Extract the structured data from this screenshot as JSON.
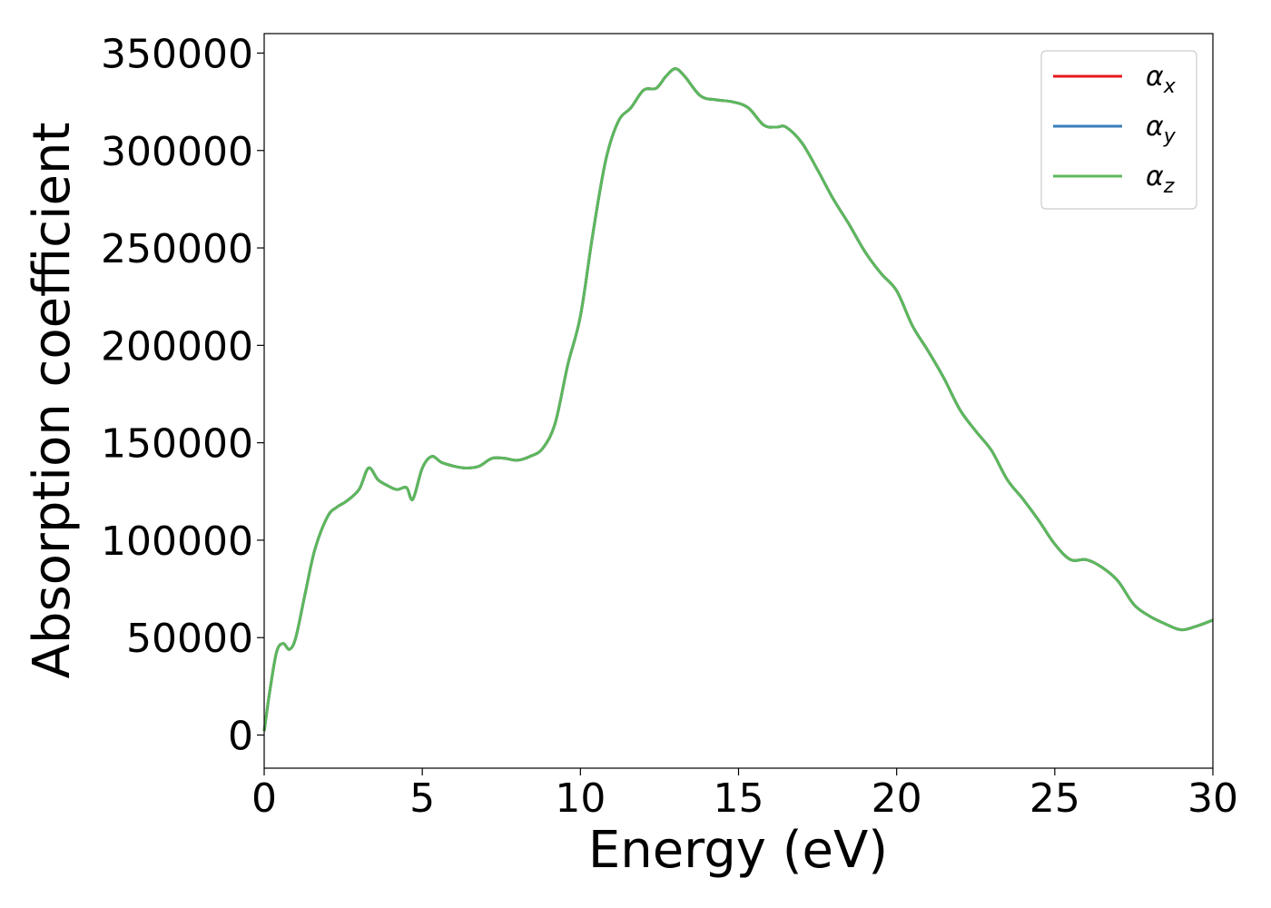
{
  "chart_data": {
    "type": "line",
    "xlabel": "Energy (eV)",
    "ylabel": "Absorption coefficient",
    "xlim": [
      0,
      30
    ],
    "ylim": [
      -17000,
      360000
    ],
    "xticks": [
      "0",
      "5",
      "10",
      "15",
      "20",
      "25",
      "30"
    ],
    "yticks": [
      "0",
      "50000",
      "100000",
      "150000",
      "200000",
      "250000",
      "300000",
      "350000"
    ],
    "grid": false,
    "legend_position": "top-right",
    "series": [
      {
        "name": "α_x",
        "symbol": "α",
        "subscript": "x",
        "color": "#e41a1c",
        "x": [
          0,
          0.2,
          0.4,
          0.6,
          0.8,
          1.0,
          1.3,
          1.6,
          2.0,
          2.3,
          2.6,
          3.0,
          3.3,
          3.6,
          3.9,
          4.2,
          4.5,
          4.7,
          5.0,
          5.3,
          5.6,
          6.0,
          6.4,
          6.8,
          7.2,
          7.6,
          8.0,
          8.4,
          8.8,
          9.2,
          9.6,
          10.0,
          10.4,
          10.8,
          11.2,
          11.6,
          12.0,
          12.4,
          12.7,
          13.0,
          13.3,
          13.8,
          14.3,
          14.8,
          15.3,
          15.8,
          16.2,
          16.5,
          17.0,
          17.5,
          18.0,
          18.5,
          19.0,
          19.5,
          20.0,
          20.5,
          21.0,
          21.5,
          22.0,
          22.5,
          23.0,
          23.5,
          24.0,
          24.5,
          25.0,
          25.5,
          26.0,
          26.5,
          27.0,
          27.5,
          28.0,
          28.5,
          29.0,
          29.5,
          30.0
        ],
        "y": [
          2000,
          25000,
          43000,
          47000,
          44000,
          50000,
          73000,
          95000,
          112000,
          117000,
          120000,
          126000,
          137000,
          131000,
          128000,
          126000,
          127000,
          121000,
          137000,
          143000,
          140000,
          138000,
          137000,
          138000,
          142000,
          142000,
          141000,
          143000,
          147000,
          160000,
          190000,
          215000,
          258000,
          295000,
          315000,
          322000,
          331000,
          332000,
          338000,
          342000,
          338000,
          328000,
          326000,
          325000,
          322000,
          313000,
          312000,
          312000,
          304000,
          290000,
          275000,
          262000,
          248000,
          237000,
          228000,
          210000,
          197000,
          183000,
          167000,
          156000,
          146000,
          131000,
          121000,
          110000,
          98000,
          90000,
          90000,
          86000,
          79000,
          67000,
          61000,
          57000,
          54000,
          56000,
          59000
        ]
      },
      {
        "name": "α_y",
        "symbol": "α",
        "subscript": "y",
        "color": "#377eb8",
        "x": [
          0,
          0.2,
          0.4,
          0.6,
          0.8,
          1.0,
          1.3,
          1.6,
          2.0,
          2.3,
          2.6,
          3.0,
          3.3,
          3.6,
          3.9,
          4.2,
          4.5,
          4.7,
          5.0,
          5.3,
          5.6,
          6.0,
          6.4,
          6.8,
          7.2,
          7.6,
          8.0,
          8.4,
          8.8,
          9.2,
          9.6,
          10.0,
          10.4,
          10.8,
          11.2,
          11.6,
          12.0,
          12.4,
          12.7,
          13.0,
          13.3,
          13.8,
          14.3,
          14.8,
          15.3,
          15.8,
          16.2,
          16.5,
          17.0,
          17.5,
          18.0,
          18.5,
          19.0,
          19.5,
          20.0,
          20.5,
          21.0,
          21.5,
          22.0,
          22.5,
          23.0,
          23.5,
          24.0,
          24.5,
          25.0,
          25.5,
          26.0,
          26.5,
          27.0,
          27.5,
          28.0,
          28.5,
          29.0,
          29.5,
          30.0
        ],
        "y": [
          2000,
          25000,
          43000,
          47000,
          44000,
          50000,
          73000,
          95000,
          112000,
          117000,
          120000,
          126000,
          137000,
          131000,
          128000,
          126000,
          127000,
          121000,
          137000,
          143000,
          140000,
          138000,
          137000,
          138000,
          142000,
          142000,
          141000,
          143000,
          147000,
          160000,
          190000,
          215000,
          258000,
          295000,
          315000,
          322000,
          331000,
          332000,
          338000,
          342000,
          338000,
          328000,
          326000,
          325000,
          322000,
          313000,
          312000,
          312000,
          304000,
          290000,
          275000,
          262000,
          248000,
          237000,
          228000,
          210000,
          197000,
          183000,
          167000,
          156000,
          146000,
          131000,
          121000,
          110000,
          98000,
          90000,
          90000,
          86000,
          79000,
          67000,
          61000,
          57000,
          54000,
          56000,
          59000
        ]
      },
      {
        "name": "α_z",
        "symbol": "α",
        "subscript": "z",
        "color": "#5cb85c",
        "x": [
          0,
          0.2,
          0.4,
          0.6,
          0.8,
          1.0,
          1.3,
          1.6,
          2.0,
          2.3,
          2.6,
          3.0,
          3.3,
          3.6,
          3.9,
          4.2,
          4.5,
          4.7,
          5.0,
          5.3,
          5.6,
          6.0,
          6.4,
          6.8,
          7.2,
          7.6,
          8.0,
          8.4,
          8.8,
          9.2,
          9.6,
          10.0,
          10.4,
          10.8,
          11.2,
          11.6,
          12.0,
          12.4,
          12.7,
          13.0,
          13.3,
          13.8,
          14.3,
          14.8,
          15.3,
          15.8,
          16.2,
          16.5,
          17.0,
          17.5,
          18.0,
          18.5,
          19.0,
          19.5,
          20.0,
          20.5,
          21.0,
          21.5,
          22.0,
          22.5,
          23.0,
          23.5,
          24.0,
          24.5,
          25.0,
          25.5,
          26.0,
          26.5,
          27.0,
          27.5,
          28.0,
          28.5,
          29.0,
          29.5,
          30.0
        ],
        "y": [
          2000,
          25000,
          43000,
          47000,
          44000,
          50000,
          73000,
          95000,
          112000,
          117000,
          120000,
          126000,
          137000,
          131000,
          128000,
          126000,
          127000,
          121000,
          137000,
          143000,
          140000,
          138000,
          137000,
          138000,
          142000,
          142000,
          141000,
          143000,
          147000,
          160000,
          190000,
          215000,
          258000,
          295000,
          315000,
          322000,
          331000,
          332000,
          338000,
          342000,
          338000,
          328000,
          326000,
          325000,
          322000,
          313000,
          312000,
          312000,
          304000,
          290000,
          275000,
          262000,
          248000,
          237000,
          228000,
          210000,
          197000,
          183000,
          167000,
          156000,
          146000,
          131000,
          121000,
          110000,
          98000,
          90000,
          90000,
          86000,
          79000,
          67000,
          61000,
          57000,
          54000,
          56000,
          59000
        ]
      }
    ]
  }
}
